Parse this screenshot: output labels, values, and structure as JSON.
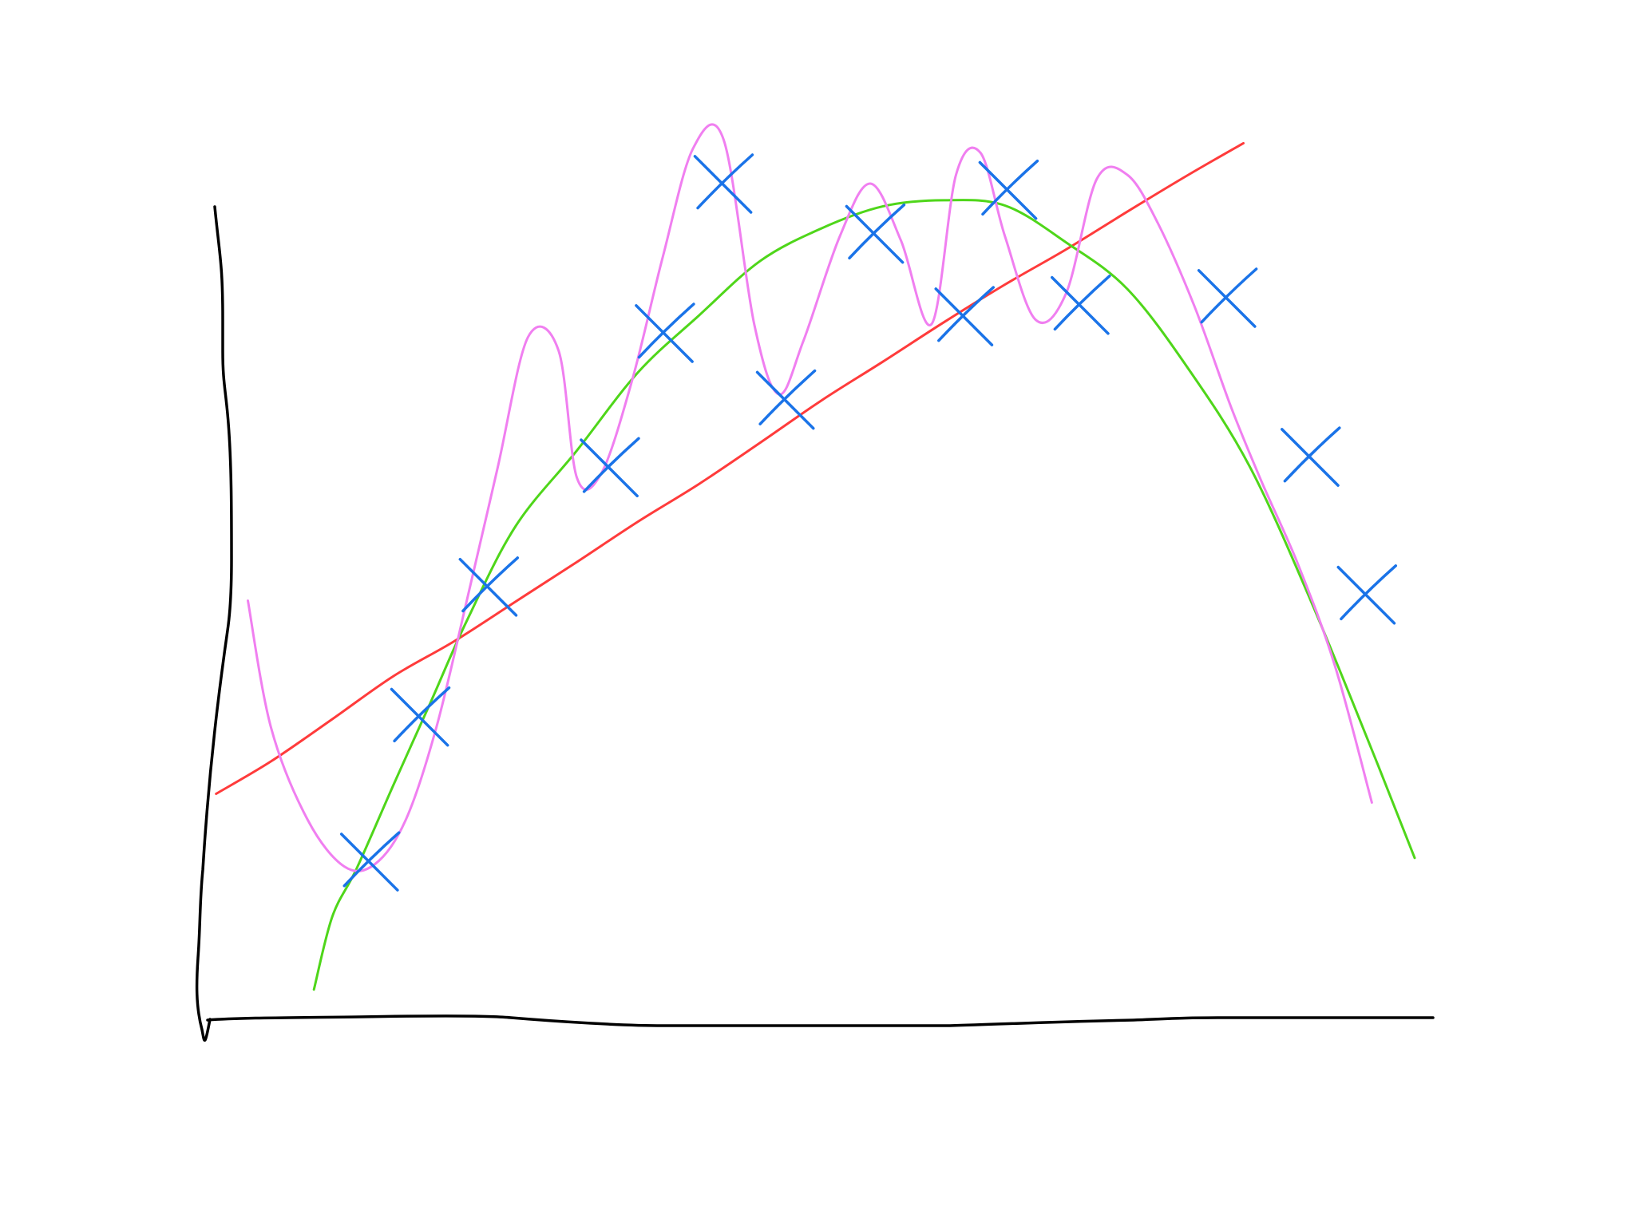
{
  "chart_data": {
    "type": "scatter",
    "title": "",
    "xlabel": "",
    "ylabel": "",
    "xlim": [
      0,
      100
    ],
    "ylim": [
      0,
      100
    ],
    "grid": false,
    "axis_color": "#000000",
    "points": {
      "marker": "x",
      "color": "#1a73e8",
      "x": [
        13.1,
        17.2,
        22.8,
        32.7,
        37.2,
        42.0,
        47.1,
        54.4,
        61.7,
        65.3,
        71.2,
        83.2,
        90.0,
        94.6
      ],
      "y": [
        17.8,
        34.3,
        49.1,
        62.7,
        78.0,
        95.0,
        70.4,
        89.3,
        79.9,
        94.3,
        81.2,
        82.0,
        63.9,
        48.2
      ]
    },
    "series": [
      {
        "kind": "degree-1 fit",
        "color": "#ff3b3b",
        "x": [
          0.5,
          5.0,
          10.0,
          15.0,
          20.0,
          25.0,
          30.0,
          35.0,
          40.0,
          45.0,
          50.0,
          55.0,
          60.0,
          65.0,
          70.0,
          75.0,
          80.0,
          84.5
        ],
        "y": [
          25.5,
          29.2,
          34.0,
          38.9,
          42.9,
          47.4,
          51.9,
          56.5,
          60.8,
          65.5,
          70.3,
          74.7,
          79.2,
          83.5,
          87.5,
          91.8,
          96.0,
          99.6
        ]
      },
      {
        "kind": "degree-2 fit",
        "color": "#4fd61a",
        "x": [
          8.5,
          10.0,
          12.0,
          15.0,
          18.0,
          21.0,
          25.0,
          30.0,
          35.0,
          40.0,
          45.0,
          50.0,
          55.0,
          60.0,
          65.0,
          70.0,
          75.0,
          80.0,
          85.0,
          90.0,
          95.0,
          98.5
        ],
        "y": [
          3.2,
          11.5,
          17.0,
          26.5,
          35.8,
          45.2,
          56.0,
          64.6,
          73.5,
          80.0,
          86.2,
          89.9,
          92.4,
          93.1,
          92.5,
          88.3,
          83.0,
          73.9,
          62.8,
          47.5,
          30.5,
          18.2
        ]
      },
      {
        "kind": "high-degree interpolation",
        "color": "#f07ff0",
        "x": [
          3.1,
          5.0,
          8.0,
          11.0,
          13.5,
          16.0,
          18.5,
          21.0,
          23.5,
          26.0,
          28.5,
          30.0,
          32.0,
          34.5,
          37.0,
          39.5,
          42.0,
          44.5,
          46.5,
          48.5,
          51.5,
          54.0,
          56.5,
          59.0,
          61.0,
          63.0,
          65.0,
          67.5,
          70.0,
          72.5,
          75.0,
          77.5,
          80.5,
          83.5,
          86.0,
          89.0,
          92.0,
          95.0
        ],
        "y": [
          47.5,
          33.0,
          22.5,
          17.2,
          17.5,
          22.5,
          33.0,
          47.5,
          62.5,
          77.5,
          76.0,
          61.5,
          62.0,
          72.5,
          86.5,
          99.0,
          100.0,
          79.0,
          71.0,
          77.0,
          89.0,
          95.0,
          88.5,
          79.0,
          96.0,
          98.5,
          89.0,
          79.5,
          82.5,
          95.5,
          96.0,
          90.5,
          81.0,
          69.5,
          61.0,
          51.5,
          40.0,
          24.5
        ]
      }
    ]
  }
}
